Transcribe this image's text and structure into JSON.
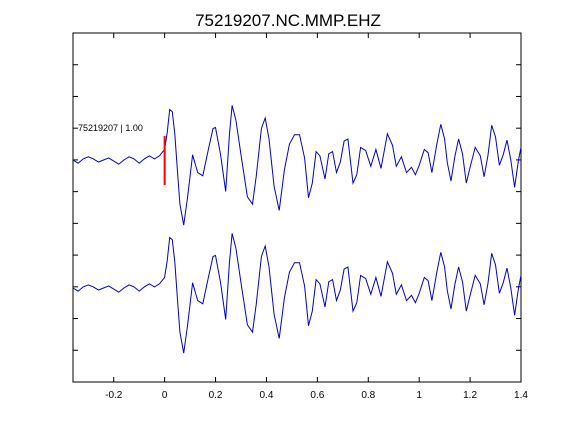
{
  "chart_data": {
    "type": "line",
    "title": "75219207.NC.MMP.EHZ",
    "xlabel": "",
    "ylabel": "",
    "xlim": [
      -0.36,
      1.4
    ],
    "x_ticks": [
      -0.2,
      0,
      0.2,
      0.4,
      0.6,
      0.8,
      1,
      1.2,
      1.4
    ],
    "x_tick_labels": [
      "-0.2",
      "0",
      "0.2",
      "0.4",
      "0.6",
      "0.8",
      "1",
      "1.2",
      "1.4"
    ],
    "grid": false,
    "legend": "none",
    "trace_label": "75219207 | 1.00",
    "pick_marker": {
      "x": 0,
      "color": "#ff0000"
    },
    "trace_color": "#0000cc",
    "series": [
      {
        "values": [
          [
            -0.36,
            0.0
          ],
          [
            -0.34,
            -0.03
          ],
          [
            -0.32,
            0.01
          ],
          [
            -0.3,
            0.03
          ],
          [
            -0.28,
            0.01
          ],
          [
            -0.26,
            -0.02
          ],
          [
            -0.24,
            0.0
          ],
          [
            -0.22,
            0.02
          ],
          [
            -0.2,
            -0.01
          ],
          [
            -0.18,
            -0.04
          ],
          [
            -0.16,
            0.0
          ],
          [
            -0.14,
            0.03
          ],
          [
            -0.12,
            0.01
          ],
          [
            -0.1,
            -0.03
          ],
          [
            -0.08,
            0.01
          ],
          [
            -0.06,
            0.04
          ],
          [
            -0.04,
            0.01
          ],
          [
            -0.02,
            0.04
          ],
          [
            0.0,
            0.1
          ],
          [
            0.01,
            0.26
          ],
          [
            0.02,
            0.48
          ],
          [
            0.03,
            0.46
          ],
          [
            0.04,
            0.25
          ],
          [
            0.05,
            -0.1
          ],
          [
            0.06,
            -0.42
          ],
          [
            0.075,
            -0.62
          ],
          [
            0.09,
            -0.36
          ],
          [
            0.11,
            0.05
          ],
          [
            0.13,
            -0.12
          ],
          [
            0.15,
            -0.15
          ],
          [
            0.17,
            0.08
          ],
          [
            0.19,
            0.3
          ],
          [
            0.2,
            0.31
          ],
          [
            0.22,
            0.05
          ],
          [
            0.24,
            -0.3
          ],
          [
            0.255,
            0.25
          ],
          [
            0.265,
            0.52
          ],
          [
            0.28,
            0.38
          ],
          [
            0.3,
            0.05
          ],
          [
            0.325,
            -0.35
          ],
          [
            0.345,
            -0.42
          ],
          [
            0.36,
            -0.15
          ],
          [
            0.38,
            0.3
          ],
          [
            0.395,
            0.4
          ],
          [
            0.41,
            0.2
          ],
          [
            0.43,
            -0.25
          ],
          [
            0.45,
            -0.48
          ],
          [
            0.47,
            -0.1
          ],
          [
            0.49,
            0.15
          ],
          [
            0.51,
            0.24
          ],
          [
            0.53,
            0.24
          ],
          [
            0.55,
            0.02
          ],
          [
            0.565,
            -0.36
          ],
          [
            0.58,
            -0.22
          ],
          [
            0.595,
            0.08
          ],
          [
            0.61,
            0.04
          ],
          [
            0.63,
            -0.18
          ],
          [
            0.645,
            0.06
          ],
          [
            0.66,
            0.08
          ],
          [
            0.675,
            -0.12
          ],
          [
            0.69,
            -0.02
          ],
          [
            0.705,
            0.18
          ],
          [
            0.72,
            0.2
          ],
          [
            0.74,
            -0.22
          ],
          [
            0.755,
            -0.14
          ],
          [
            0.77,
            0.12
          ],
          [
            0.79,
            0.09
          ],
          [
            0.81,
            -0.06
          ],
          [
            0.83,
            0.1
          ],
          [
            0.85,
            -0.08
          ],
          [
            0.875,
            0.25
          ],
          [
            0.895,
            0.14
          ],
          [
            0.91,
            -0.06
          ],
          [
            0.93,
            0.03
          ],
          [
            0.95,
            -0.12
          ],
          [
            0.97,
            -0.07
          ],
          [
            0.985,
            -0.14
          ],
          [
            1.0,
            -0.05
          ],
          [
            1.02,
            0.1
          ],
          [
            1.035,
            0.07
          ],
          [
            1.05,
            -0.12
          ],
          [
            1.07,
            0.16
          ],
          [
            1.085,
            0.34
          ],
          [
            1.1,
            0.2
          ],
          [
            1.11,
            -0.02
          ],
          [
            1.125,
            -0.2
          ],
          [
            1.14,
            0.03
          ],
          [
            1.155,
            0.2
          ],
          [
            1.17,
            0.06
          ],
          [
            1.185,
            -0.22
          ],
          [
            1.2,
            -0.07
          ],
          [
            1.22,
            0.12
          ],
          [
            1.24,
            0.04
          ],
          [
            1.255,
            -0.16
          ],
          [
            1.27,
            0.04
          ],
          [
            1.285,
            0.33
          ],
          [
            1.3,
            0.22
          ],
          [
            1.315,
            -0.05
          ],
          [
            1.33,
            0.05
          ],
          [
            1.345,
            0.19
          ],
          [
            1.36,
            0.0
          ],
          [
            1.375,
            -0.26
          ],
          [
            1.39,
            0.0
          ],
          [
            1.4,
            0.12
          ]
        ]
      },
      {
        "values": [
          [
            -0.36,
            0.0
          ],
          [
            -0.34,
            -0.03
          ],
          [
            -0.32,
            0.01
          ],
          [
            -0.3,
            0.03
          ],
          [
            -0.28,
            0.01
          ],
          [
            -0.26,
            -0.02
          ],
          [
            -0.24,
            0.0
          ],
          [
            -0.22,
            0.02
          ],
          [
            -0.2,
            -0.01
          ],
          [
            -0.18,
            -0.04
          ],
          [
            -0.16,
            0.0
          ],
          [
            -0.14,
            0.03
          ],
          [
            -0.12,
            0.01
          ],
          [
            -0.1,
            -0.03
          ],
          [
            -0.08,
            0.01
          ],
          [
            -0.06,
            0.04
          ],
          [
            -0.04,
            0.01
          ],
          [
            -0.02,
            0.04
          ],
          [
            0.0,
            0.1
          ],
          [
            0.01,
            0.26
          ],
          [
            0.02,
            0.48
          ],
          [
            0.03,
            0.46
          ],
          [
            0.04,
            0.25
          ],
          [
            0.05,
            -0.1
          ],
          [
            0.06,
            -0.42
          ],
          [
            0.075,
            -0.62
          ],
          [
            0.09,
            -0.36
          ],
          [
            0.11,
            0.05
          ],
          [
            0.13,
            -0.12
          ],
          [
            0.15,
            -0.15
          ],
          [
            0.17,
            0.08
          ],
          [
            0.19,
            0.3
          ],
          [
            0.2,
            0.31
          ],
          [
            0.22,
            0.05
          ],
          [
            0.24,
            -0.3
          ],
          [
            0.255,
            0.25
          ],
          [
            0.265,
            0.52
          ],
          [
            0.28,
            0.38
          ],
          [
            0.3,
            0.05
          ],
          [
            0.325,
            -0.35
          ],
          [
            0.345,
            -0.42
          ],
          [
            0.36,
            -0.15
          ],
          [
            0.38,
            0.3
          ],
          [
            0.395,
            0.4
          ],
          [
            0.41,
            0.2
          ],
          [
            0.43,
            -0.25
          ],
          [
            0.45,
            -0.48
          ],
          [
            0.47,
            -0.1
          ],
          [
            0.49,
            0.15
          ],
          [
            0.51,
            0.24
          ],
          [
            0.53,
            0.24
          ],
          [
            0.55,
            0.02
          ],
          [
            0.565,
            -0.36
          ],
          [
            0.58,
            -0.22
          ],
          [
            0.595,
            0.08
          ],
          [
            0.61,
            0.04
          ],
          [
            0.63,
            -0.18
          ],
          [
            0.645,
            0.06
          ],
          [
            0.66,
            0.08
          ],
          [
            0.675,
            -0.12
          ],
          [
            0.69,
            -0.02
          ],
          [
            0.705,
            0.18
          ],
          [
            0.72,
            0.2
          ],
          [
            0.74,
            -0.22
          ],
          [
            0.755,
            -0.14
          ],
          [
            0.77,
            0.12
          ],
          [
            0.79,
            0.09
          ],
          [
            0.81,
            -0.06
          ],
          [
            0.83,
            0.1
          ],
          [
            0.85,
            -0.08
          ],
          [
            0.875,
            0.25
          ],
          [
            0.895,
            0.14
          ],
          [
            0.91,
            -0.06
          ],
          [
            0.93,
            0.03
          ],
          [
            0.95,
            -0.12
          ],
          [
            0.97,
            -0.07
          ],
          [
            0.985,
            -0.14
          ],
          [
            1.0,
            -0.05
          ],
          [
            1.02,
            0.1
          ],
          [
            1.035,
            0.07
          ],
          [
            1.05,
            -0.12
          ],
          [
            1.07,
            0.16
          ],
          [
            1.085,
            0.34
          ],
          [
            1.1,
            0.2
          ],
          [
            1.11,
            -0.02
          ],
          [
            1.125,
            -0.2
          ],
          [
            1.14,
            0.03
          ],
          [
            1.155,
            0.2
          ],
          [
            1.17,
            0.06
          ],
          [
            1.185,
            -0.22
          ],
          [
            1.2,
            -0.07
          ],
          [
            1.22,
            0.12
          ],
          [
            1.24,
            0.04
          ],
          [
            1.255,
            -0.16
          ],
          [
            1.27,
            0.04
          ],
          [
            1.285,
            0.33
          ],
          [
            1.3,
            0.22
          ],
          [
            1.315,
            -0.05
          ],
          [
            1.33,
            0.05
          ],
          [
            1.345,
            0.19
          ],
          [
            1.36,
            0.0
          ],
          [
            1.375,
            -0.26
          ],
          [
            1.39,
            0.0
          ],
          [
            1.4,
            0.12
          ]
        ]
      }
    ]
  }
}
